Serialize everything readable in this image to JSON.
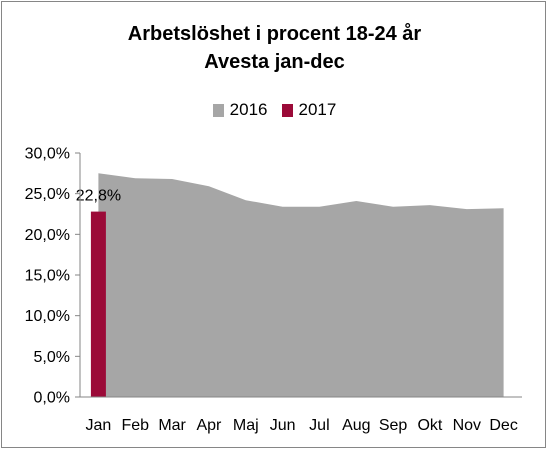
{
  "chart_data": {
    "type": "area",
    "title": "Arbetslöshet  i procent 18-24 år",
    "subtitle": "Avesta jan-dec",
    "categories": [
      "Jan",
      "Feb",
      "Mar",
      "Apr",
      "Maj",
      "Jun",
      "Jul",
      "Aug",
      "Sep",
      "Okt",
      "Nov",
      "Dec"
    ],
    "series": [
      {
        "name": "2016",
        "kind": "area",
        "color": "#a6a6a6",
        "values": [
          27.5,
          26.9,
          26.8,
          25.9,
          24.2,
          23.4,
          23.4,
          24.1,
          23.4,
          23.6,
          23.1,
          23.2
        ]
      },
      {
        "name": "2017",
        "kind": "bar",
        "color": "#9b0a38",
        "values": [
          22.8,
          null,
          null,
          null,
          null,
          null,
          null,
          null,
          null,
          null,
          null,
          null
        ],
        "data_labels": [
          "22,8%"
        ]
      }
    ],
    "y_ticks": [
      "0,0%",
      "5,0%",
      "10,0%",
      "15,0%",
      "20,0%",
      "25,0%",
      "30,0%"
    ],
    "ylim": [
      0,
      30
    ],
    "legend_position": "top",
    "grid": false
  }
}
